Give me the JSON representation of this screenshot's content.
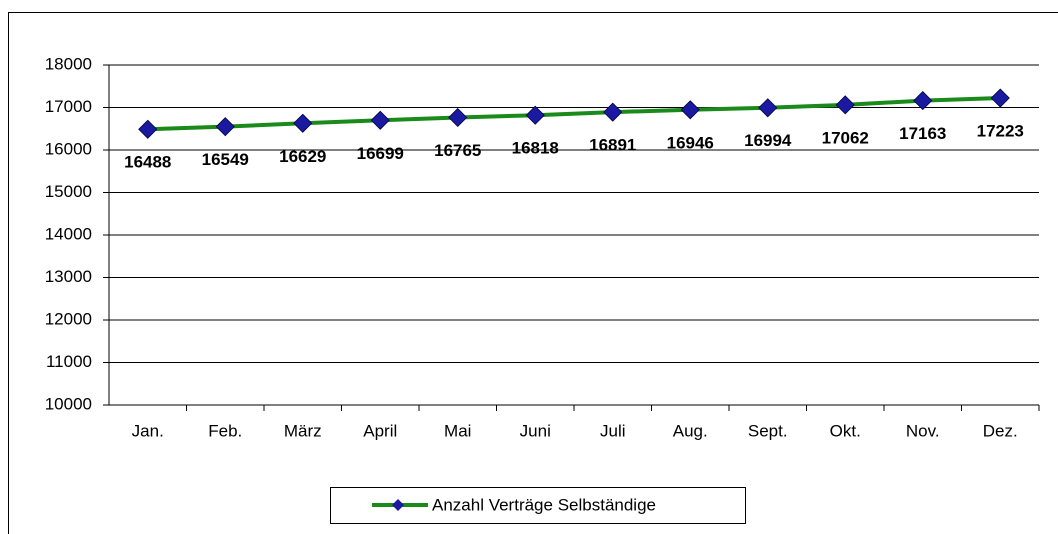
{
  "chart_data": {
    "type": "line",
    "categories": [
      "Jan.",
      "Feb.",
      "März",
      "April",
      "Mai",
      "Juni",
      "Juli",
      "Aug.",
      "Sept.",
      "Okt.",
      "Nov.",
      "Dez."
    ],
    "series": [
      {
        "name": "Anzahl Verträge Selbständige",
        "color": "#1a8a1a",
        "marker_color": "#1a1aa0",
        "values": [
          16488,
          16549,
          16629,
          16699,
          16765,
          16818,
          16891,
          16946,
          16994,
          17062,
          17163,
          17223
        ]
      }
    ],
    "ylim": [
      10000,
      18000
    ],
    "yticks": [
      10000,
      11000,
      12000,
      13000,
      14000,
      15000,
      16000,
      17000,
      18000
    ],
    "grid": true,
    "legend": "bottom"
  }
}
